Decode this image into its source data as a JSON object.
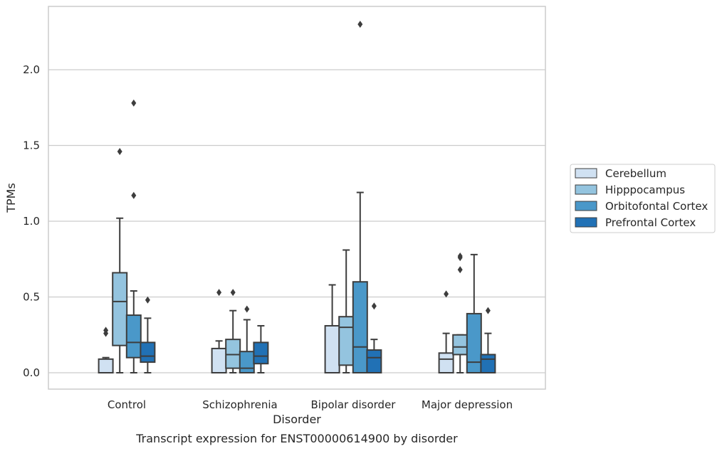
{
  "chart_data": {
    "type": "box",
    "title": "",
    "caption": "Transcript expression for ENST00000614900 by disorder",
    "xlabel": "Disorder",
    "ylabel": "TPMs",
    "ylim": [
      -0.11,
      2.42
    ],
    "yticks": [
      0.0,
      0.5,
      1.0,
      1.5,
      2.0
    ],
    "ytick_labels": [
      "0.0",
      "0.5",
      "1.0",
      "1.5",
      "2.0"
    ],
    "grid": "horizontal",
    "legend_placement": "right",
    "categories": [
      "Control",
      "Schizophrenia",
      "Bipolar disorder",
      "Major depression"
    ],
    "series": [
      {
        "name": "Cerebellum",
        "color": "#d0e1f2",
        "boxes": [
          {
            "whislo": 0.0,
            "q1": 0.0,
            "med": 0.0,
            "q3": 0.09,
            "whishi": 0.1,
            "fliers": [
              0.26,
              0.28
            ]
          },
          {
            "whislo": 0.0,
            "q1": 0.0,
            "med": 0.0,
            "q3": 0.16,
            "whishi": 0.21,
            "fliers": [
              0.53
            ]
          },
          {
            "whislo": 0.0,
            "q1": 0.0,
            "med": 0.0,
            "q3": 0.31,
            "whishi": 0.58,
            "fliers": []
          },
          {
            "whislo": 0.0,
            "q1": 0.0,
            "med": 0.09,
            "q3": 0.13,
            "whishi": 0.26,
            "fliers": [
              0.52
            ]
          }
        ]
      },
      {
        "name": "Hipppocampus",
        "color": "#94c4df",
        "boxes": [
          {
            "whislo": 0.0,
            "q1": 0.18,
            "med": 0.47,
            "q3": 0.66,
            "whishi": 1.02,
            "fliers": [
              1.46
            ]
          },
          {
            "whislo": 0.0,
            "q1": 0.03,
            "med": 0.12,
            "q3": 0.22,
            "whishi": 0.41,
            "fliers": [
              0.53
            ]
          },
          {
            "whislo": 0.0,
            "q1": 0.05,
            "med": 0.3,
            "q3": 0.37,
            "whishi": 0.81,
            "fliers": []
          },
          {
            "whislo": 0.0,
            "q1": 0.12,
            "med": 0.17,
            "q3": 0.25,
            "whishi": 0.25,
            "fliers": [
              0.68,
              0.76,
              0.77
            ]
          }
        ]
      },
      {
        "name": "Orbitofontal Cortex",
        "color": "#4a98c9",
        "boxes": [
          {
            "whislo": 0.0,
            "q1": 0.1,
            "med": 0.2,
            "q3": 0.38,
            "whishi": 0.54,
            "fliers": [
              1.17,
              1.78
            ]
          },
          {
            "whislo": 0.0,
            "q1": 0.0,
            "med": 0.03,
            "q3": 0.14,
            "whishi": 0.35,
            "fliers": [
              0.42
            ]
          },
          {
            "whislo": 0.0,
            "q1": 0.0,
            "med": 0.17,
            "q3": 0.6,
            "whishi": 1.19,
            "fliers": [
              2.3
            ]
          },
          {
            "whislo": 0.0,
            "q1": 0.0,
            "med": 0.07,
            "q3": 0.39,
            "whishi": 0.78,
            "fliers": []
          }
        ]
      },
      {
        "name": "Prefrontal Cortex",
        "color": "#2171b5",
        "boxes": [
          {
            "whislo": 0.0,
            "q1": 0.07,
            "med": 0.11,
            "q3": 0.2,
            "whishi": 0.36,
            "fliers": [
              0.48
            ]
          },
          {
            "whislo": 0.0,
            "q1": 0.06,
            "med": 0.11,
            "q3": 0.2,
            "whishi": 0.31,
            "fliers": []
          },
          {
            "whislo": 0.0,
            "q1": 0.0,
            "med": 0.1,
            "q3": 0.15,
            "whishi": 0.22,
            "fliers": [
              0.44
            ]
          },
          {
            "whislo": 0.0,
            "q1": 0.0,
            "med": 0.09,
            "q3": 0.12,
            "whishi": 0.26,
            "fliers": [
              0.41
            ]
          }
        ]
      }
    ]
  }
}
